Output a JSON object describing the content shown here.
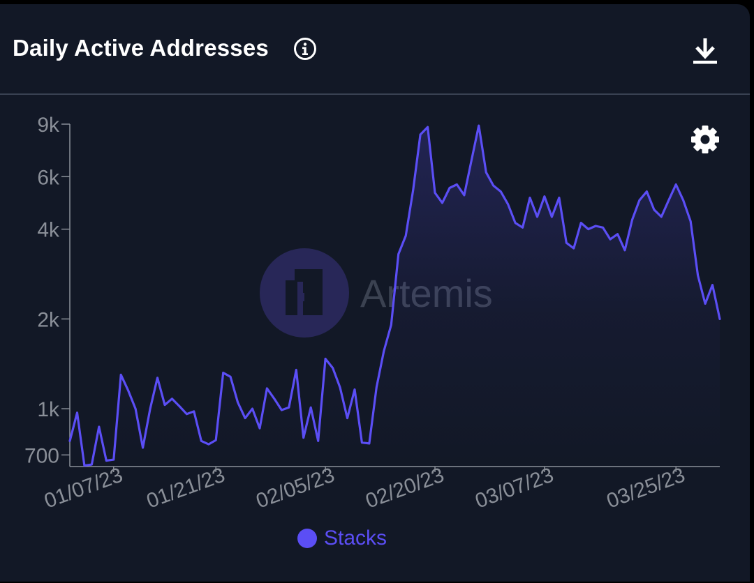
{
  "header": {
    "title": "Daily Active Addresses",
    "info_icon": "info-circle-icon",
    "download_icon": "download-icon"
  },
  "settings_icon": "gear-icon",
  "watermark": {
    "text": "Artemis"
  },
  "colors": {
    "background": "#121826",
    "series": "#5b4ef5",
    "axis": "#8a8f98",
    "divider": "#394152"
  },
  "legend": [
    {
      "label": "Stacks",
      "color": "#5b4ef5"
    }
  ],
  "chart_data": {
    "type": "line",
    "title": "Daily Active Addresses",
    "xlabel": "",
    "ylabel": "",
    "y_scale": "log",
    "ylim": [
      640,
      9000
    ],
    "xlim": [
      "2023-01-01",
      "2023-03-31"
    ],
    "y_ticks": [
      700,
      1000,
      2000,
      4000,
      6000,
      9000
    ],
    "y_tick_labels": [
      "700",
      "1k",
      "2k",
      "4k",
      "6k",
      "9k"
    ],
    "x_ticks": [
      "2023-01-07",
      "2023-01-21",
      "2023-02-05",
      "2023-02-20",
      "2023-03-07",
      "2023-03-25"
    ],
    "x_tick_labels": [
      "01/07/23",
      "01/21/23",
      "02/05/23",
      "02/20/23",
      "03/07/23",
      "03/25/23"
    ],
    "grid": false,
    "legend_position": "bottom-center",
    "series": [
      {
        "name": "Stacks",
        "color": "#5b4ef5",
        "x": [
          "2023-01-01",
          "2023-01-02",
          "2023-01-03",
          "2023-01-04",
          "2023-01-05",
          "2023-01-06",
          "2023-01-07",
          "2023-01-08",
          "2023-01-09",
          "2023-01-10",
          "2023-01-11",
          "2023-01-12",
          "2023-01-13",
          "2023-01-14",
          "2023-01-15",
          "2023-01-16",
          "2023-01-17",
          "2023-01-18",
          "2023-01-19",
          "2023-01-20",
          "2023-01-21",
          "2023-01-22",
          "2023-01-23",
          "2023-01-24",
          "2023-01-25",
          "2023-01-26",
          "2023-01-27",
          "2023-01-28",
          "2023-01-29",
          "2023-01-30",
          "2023-01-31",
          "2023-02-01",
          "2023-02-02",
          "2023-02-03",
          "2023-02-04",
          "2023-02-05",
          "2023-02-06",
          "2023-02-07",
          "2023-02-08",
          "2023-02-09",
          "2023-02-10",
          "2023-02-11",
          "2023-02-12",
          "2023-02-13",
          "2023-02-14",
          "2023-02-15",
          "2023-02-16",
          "2023-02-17",
          "2023-02-18",
          "2023-02-19",
          "2023-02-20",
          "2023-02-21",
          "2023-02-22",
          "2023-02-23",
          "2023-02-24",
          "2023-02-25",
          "2023-02-26",
          "2023-02-27",
          "2023-02-28",
          "2023-03-01",
          "2023-03-02",
          "2023-03-03",
          "2023-03-04",
          "2023-03-05",
          "2023-03-06",
          "2023-03-07",
          "2023-03-08",
          "2023-03-09",
          "2023-03-10",
          "2023-03-11",
          "2023-03-12",
          "2023-03-13",
          "2023-03-14",
          "2023-03-15",
          "2023-03-16",
          "2023-03-17",
          "2023-03-18",
          "2023-03-19",
          "2023-03-20",
          "2023-03-21",
          "2023-03-22",
          "2023-03-23",
          "2023-03-24",
          "2023-03-25",
          "2023-03-26",
          "2023-03-27",
          "2023-03-28",
          "2023-03-29",
          "2023-03-30",
          "2023-03-31"
        ],
        "y": [
          780,
          970,
          645,
          650,
          870,
          670,
          675,
          1300,
          1150,
          1000,
          740,
          1000,
          1270,
          1030,
          1080,
          1020,
          960,
          980,
          780,
          760,
          785,
          1320,
          1280,
          1050,
          930,
          1000,
          860,
          1170,
          1080,
          990,
          1010,
          1350,
          800,
          1010,
          780,
          1470,
          1370,
          1180,
          930,
          1160,
          770,
          765,
          1180,
          1560,
          1910,
          3300,
          3800,
          5400,
          8300,
          8800,
          5300,
          4900,
          5500,
          5650,
          5200,
          6800,
          8900,
          6200,
          5600,
          5350,
          4850,
          4200,
          4050,
          5100,
          4400,
          5150,
          4400,
          5100,
          3600,
          3450,
          4200,
          4000,
          4100,
          4050,
          3700,
          3850,
          3400,
          4300,
          5000,
          5350,
          4650,
          4400,
          5000,
          5650,
          5000,
          4250,
          2800,
          2250,
          2600,
          2000
        ]
      }
    ]
  }
}
